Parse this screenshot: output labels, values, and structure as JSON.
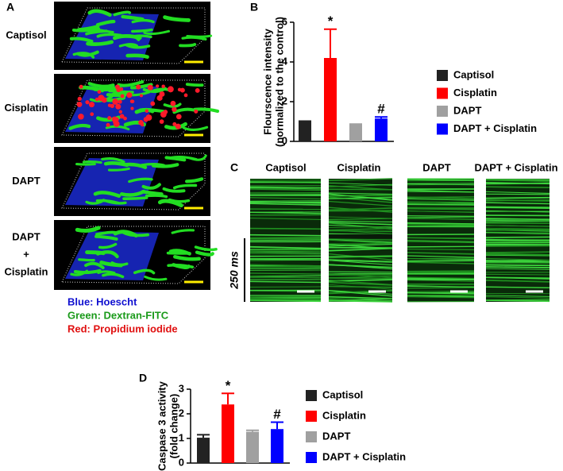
{
  "panel_labels": [
    "A",
    "B",
    "C",
    "D"
  ],
  "panel_a": {
    "rows": [
      [
        "Captisol"
      ],
      [
        "Cisplatin"
      ],
      [
        "DAPT"
      ],
      [
        "DAPT",
        "+",
        "Cisplatin"
      ]
    ],
    "legend": [
      "Blue: Hoescht",
      "Green: Dextran-FITC",
      "Red: Propidium iodide"
    ]
  },
  "panel_c": {
    "columns": [
      "Captisol",
      "Cisplatin",
      "DAPT",
      "DAPT + Cisplatin"
    ],
    "time_label": "250 ms"
  },
  "chart_data": [
    {
      "type": "bar",
      "ylabel": [
        "Flourscence intensity",
        "(normalized to the control)"
      ],
      "categories": [
        "Captisol",
        "Cisplatin",
        "DAPT",
        "DAPT + Cisplatin"
      ],
      "values": [
        1.0,
        4.2,
        0.85,
        1.15
      ],
      "errors": [
        0.02,
        1.45,
        0.02,
        0.08
      ],
      "colors": [
        "#222222",
        "#ff0000",
        "#a0a0a0",
        "#0000ff"
      ],
      "annotations": [
        null,
        "*",
        null,
        "#"
      ],
      "ylim": [
        0,
        6
      ],
      "yticks": [
        0,
        2,
        4,
        6
      ]
    },
    {
      "type": "bar",
      "ylabel": [
        "Caspase 3 activity",
        "(fold change)"
      ],
      "categories": [
        "Captisol",
        "Cisplatin",
        "DAPT",
        "DAPT + Cisplatin"
      ],
      "values": [
        1.03,
        2.38,
        1.27,
        1.38
      ],
      "errors": [
        0.12,
        0.45,
        0.06,
        0.28
      ],
      "colors": [
        "#222222",
        "#ff0000",
        "#a0a0a0",
        "#0000ff"
      ],
      "annotations": [
        null,
        "*",
        null,
        "#"
      ],
      "ylim": [
        0,
        3
      ],
      "yticks": [
        0,
        1,
        2,
        3
      ]
    }
  ]
}
